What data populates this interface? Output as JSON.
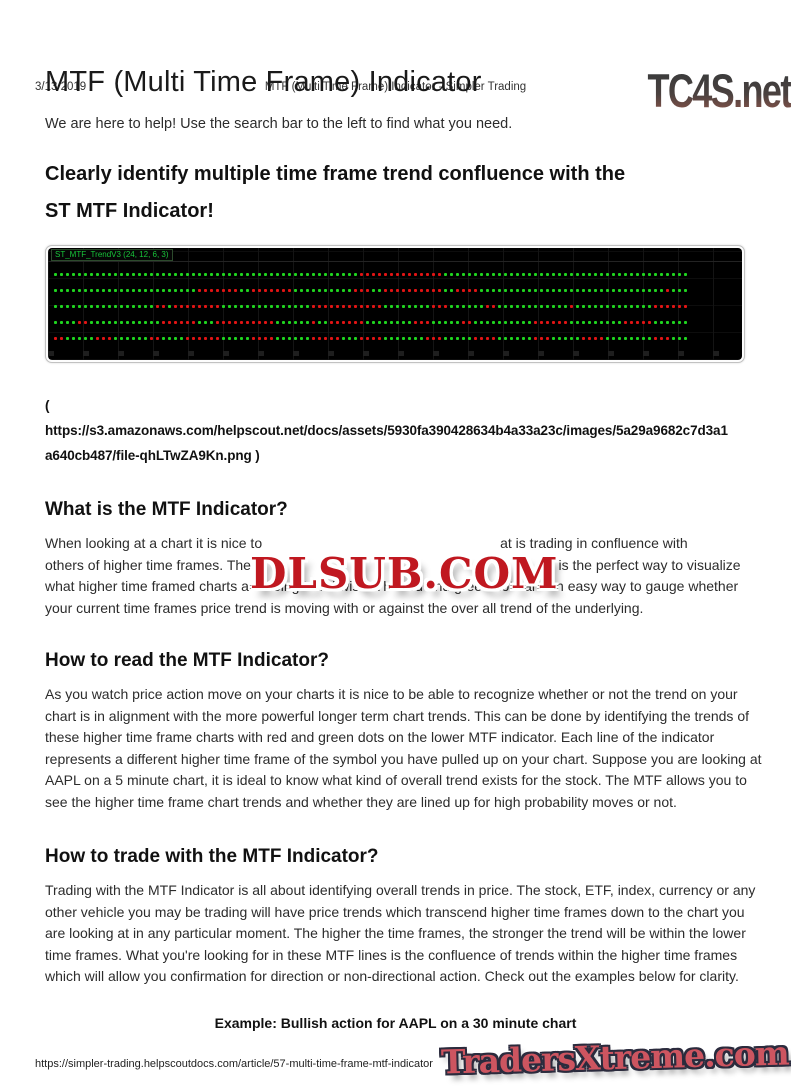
{
  "print_header": {
    "date": "3/13/2019",
    "doc_title": "MTF (Multi Time Frame) Indicator - Simpler Trading"
  },
  "watermarks": {
    "top_right": "TC4S.net",
    "middle": "DLSUB.COM",
    "bottom_right": "TradersXtreme.com"
  },
  "article": {
    "title": "MTF (Multi Time Frame) Indicator",
    "intro": "We are here to help! Use the search bar to the left to find what you need.",
    "headline_line1": "Clearly identify multiple time frame trend confluence with the",
    "headline_line2": "ST MTF Indicator!"
  },
  "chart_data": {
    "type": "heatmap",
    "title": "ST_MTF_TrendV3 (24, 12, 6, 3)",
    "description": "MTF indicator panel: 5 rows of red/green trend dots on black background, one row per higher time frame",
    "colors": {
      "green": "#1fd41f",
      "red": "#e01414",
      "background": "#000000"
    },
    "rows": [
      "G51 R14 G41",
      "G24 R7 G2 R7 G10 R3 G2 R10 G2 R4 G31 R1 G3",
      "G17 R2 G1 R8 G15 R12 G8 R3 G6 R2 G12 R1 G13 R6",
      "G4 R2 G12 R6 G3 R10 G6 R1 G2 R6 G8 R3 G5 R2 G10 R6 G9 R5 G6",
      "R2 G5 R3 G6 R2 G4 R6 G5 R4 G6 R5 G3 R4 G7 R3 G5 R4 G6 R3 G5 R4 G8 R3 G3"
    ]
  },
  "citation": {
    "open": "(",
    "line1": "https://s3.amazonaws.com/helpscout.net/docs/assets/5930fa390428634b4a33a23c/images/5a29a9682c7d3a1",
    "line2": "a640cb487/file-qhLTwZA9Kn.png )"
  },
  "what": {
    "heading": "What is the MTF Indicator?",
    "l1a": "When looking at a chart it is nice to",
    "l1b": "at is trading in confluence with",
    "l2a": "others of higher time frames. The M",
    "l2b": "is the perfect way to visualize",
    "l3": "what higher time framed charts are doing trend wise. The red and greed dots are an easy way to gauge whether",
    "l4": "your current time frames price trend is moving with or against the over all trend of the underlying."
  },
  "read": {
    "heading": "How to read the MTF Indicator?",
    "lines": [
      "As you watch price action move on your charts it is nice to be able to recognize whether or not the trend on your",
      "chart is in alignment with the more powerful longer term chart trends. This can be done by identifying the trends of",
      "these higher time frame charts with red and green dots on the lower MTF indicator. Each line of the indicator",
      "represents a different higher time frame of the symbol you have pulled up on your chart. Suppose you are looking at",
      "AAPL on a 5 minute chart, it is ideal to know what kind of overall trend exists for the stock. The MTF allows you to",
      "see the higher time frame chart trends and whether they are lined up for high probability moves or not."
    ]
  },
  "trade": {
    "heading": "How to trade with the MTF Indicator?",
    "lines": [
      "Trading with the MTF Indicator is all about identifying overall trends in price. The stock, ETF, index, currency or any",
      "other vehicle you may be trading will have price trends which transcend higher time frames down to the chart you",
      "are looking at in any particular moment. The higher the time frames, the stronger the trend will be within the lower",
      "time frames. What you're looking for in these MTF lines is the confluence of trends within the higher time frames",
      "which will allow you confirmation for direction or non-directional action. Check out the examples below for clarity."
    ]
  },
  "example_caption": "Example: Bullish action for AAPL on a 30 minute chart",
  "print_footer": {
    "url": "https://simpler-trading.helpscoutdocs.com/article/57-multi-time-frame-mtf-indicator"
  }
}
